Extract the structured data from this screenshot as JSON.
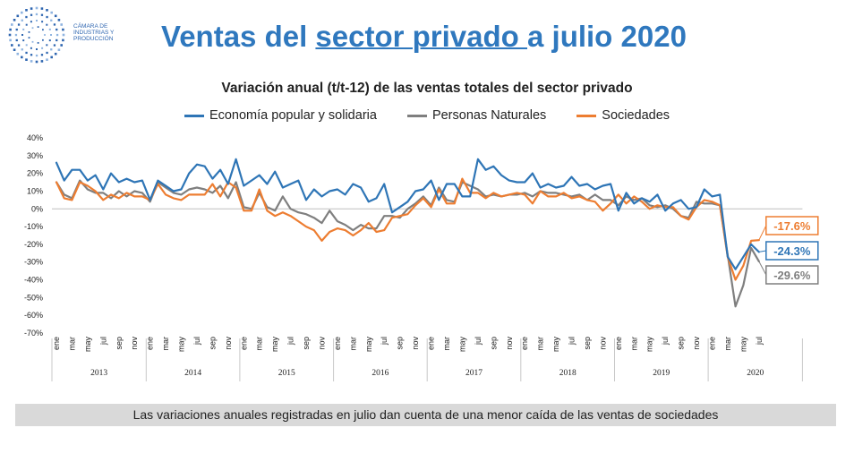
{
  "header": {
    "logo_lines": [
      "CÁMARA DE",
      "INDUSTRIAS Y",
      "PRODUCCIÓN"
    ],
    "title_part1": "Ventas del ",
    "title_part2": "sector privado ",
    "title_part3": "a julio 2020"
  },
  "footer": {
    "note": "Las variaciones anuales registradas en julio dan cuenta de una menor caída de las ventas de sociedades"
  },
  "chart_data": {
    "type": "line",
    "title": "Variación anual (t/t-12) de las ventas totales del sector privado",
    "ylim": [
      -70,
      40
    ],
    "yticks": [
      "40%",
      "30%",
      "20%",
      "10%",
      "0%",
      "-10%",
      "-20%",
      "-30%",
      "-40%",
      "-50%",
      "-60%",
      "-70%"
    ],
    "month_labels": [
      "ene",
      "mar",
      "may",
      "jul",
      "sep",
      "nov"
    ],
    "years": [
      "2013",
      "2014",
      "2015",
      "2016",
      "2017",
      "2018",
      "2019",
      "2020"
    ],
    "grid": false,
    "legend_position": "top",
    "series": [
      {
        "name": "Economía popular y solidaria",
        "color": "#2e75b6",
        "end_label": "-24.3%",
        "values": [
          26,
          16,
          22,
          22,
          16,
          19,
          11,
          20,
          15,
          17,
          15,
          16,
          5,
          16,
          13,
          10,
          11,
          20,
          25,
          24,
          17,
          22,
          14,
          28,
          13,
          16,
          19,
          14,
          21,
          12,
          14,
          16,
          5,
          11,
          7,
          10,
          11,
          8,
          14,
          12,
          4,
          6,
          14,
          -2,
          1,
          4,
          10,
          11,
          16,
          5,
          14,
          14,
          7,
          7,
          28,
          22,
          24,
          19,
          16,
          15,
          15,
          20,
          12,
          14,
          12,
          13,
          18,
          13,
          14,
          11,
          13,
          14,
          -1,
          9,
          3,
          6,
          4,
          8,
          -1,
          3,
          5,
          0,
          1,
          11,
          7,
          8,
          -27,
          -34,
          -27,
          -20,
          -24.3
        ]
      },
      {
        "name": "Personas Naturales",
        "color": "#7f7f7f",
        "end_label": "-29.6%",
        "values": [
          15,
          8,
          6,
          16,
          11,
          9,
          9,
          6,
          10,
          7,
          10,
          9,
          4,
          15,
          12,
          9,
          8,
          11,
          12,
          11,
          9,
          13,
          6,
          15,
          1,
          0,
          9,
          1,
          -1,
          7,
          0,
          -2,
          -3,
          -5,
          -8,
          -1,
          -7,
          -9,
          -12,
          -9,
          -11,
          -11,
          -4,
          -4,
          -5,
          0,
          3,
          7,
          2,
          12,
          5,
          4,
          15,
          13,
          11,
          7,
          8,
          7,
          8,
          8,
          9,
          7,
          10,
          9,
          9,
          8,
          7,
          8,
          5,
          8,
          5,
          5,
          2,
          7,
          5,
          6,
          2,
          1,
          2,
          0,
          -4,
          -5,
          4,
          3,
          3,
          2,
          -26,
          -55,
          -43,
          -22,
          -29.6
        ]
      },
      {
        "name": "Sociedades",
        "color": "#ed7d31",
        "end_label": "-17.6%",
        "values": [
          15,
          6,
          5,
          15,
          13,
          10,
          5,
          8,
          6,
          9,
          7,
          7,
          5,
          14,
          8,
          6,
          5,
          8,
          8,
          8,
          14,
          7,
          15,
          12,
          -1,
          -1,
          11,
          -1,
          -4,
          -2,
          -4,
          -7,
          -10,
          -12,
          -18,
          -13,
          -11,
          -12,
          -15,
          -12,
          -8,
          -13,
          -12,
          -5,
          -4,
          -3,
          2,
          6,
          1,
          11,
          3,
          3,
          17,
          9,
          9,
          6,
          9,
          7,
          8,
          9,
          8,
          3,
          10,
          7,
          7,
          9,
          6,
          7,
          5,
          4,
          -1,
          3,
          8,
          3,
          7,
          4,
          0,
          2,
          1,
          1,
          -4,
          -6,
          1,
          5,
          4,
          2,
          -27,
          -40,
          -32,
          -18,
          -17.6
        ]
      }
    ]
  }
}
